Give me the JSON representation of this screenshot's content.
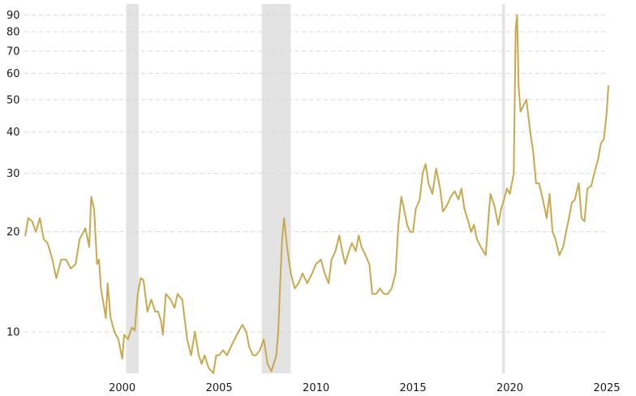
{
  "chart_data": {
    "type": "line",
    "title": "",
    "xlabel": "",
    "ylabel": "",
    "y_scale": "log",
    "ylim": [
      7.5,
      97
    ],
    "xlim": [
      1994.95,
      2025.0
    ],
    "y_ticks": [
      10,
      20,
      30,
      40,
      50,
      60,
      70,
      80,
      90
    ],
    "x_ticks": [
      2000,
      2005,
      2010,
      2015,
      2020,
      2025
    ],
    "grid": "horizontal dashed",
    "legend": "none",
    "colors": {
      "line": "#c9a94f",
      "recession": "#e3e3e3",
      "grid": "#d9d9d9"
    },
    "recession_bands": [
      {
        "start": 2000.2,
        "end": 2000.85
      },
      {
        "start": 2007.2,
        "end": 2008.7
      },
      {
        "start": 2019.6,
        "end": 2019.75
      }
    ],
    "series": [
      {
        "values": [
          [
            1995.0,
            19.5
          ],
          [
            1995.15,
            22
          ],
          [
            1995.35,
            21.5
          ],
          [
            1995.55,
            20
          ],
          [
            1995.75,
            22
          ],
          [
            1995.95,
            19
          ],
          [
            1996.15,
            18.5
          ],
          [
            1996.4,
            16.5
          ],
          [
            1996.6,
            14.5
          ],
          [
            1996.85,
            16.5
          ],
          [
            1997.1,
            16.5
          ],
          [
            1997.35,
            15.5
          ],
          [
            1997.6,
            16
          ],
          [
            1997.8,
            19
          ],
          [
            1998.1,
            20.5
          ],
          [
            1998.3,
            18
          ],
          [
            1998.4,
            25.5
          ],
          [
            1998.55,
            23.5
          ],
          [
            1998.7,
            16
          ],
          [
            1998.8,
            16.5
          ],
          [
            1998.9,
            13.5
          ],
          [
            1999.05,
            12
          ],
          [
            1999.15,
            11
          ],
          [
            1999.25,
            14
          ],
          [
            1999.4,
            11
          ],
          [
            1999.6,
            10
          ],
          [
            1999.8,
            9.5
          ],
          [
            2000.0,
            8.3
          ],
          [
            2000.1,
            9.8
          ],
          [
            2000.3,
            9.5
          ],
          [
            2000.5,
            10.3
          ],
          [
            2000.65,
            10.1
          ],
          [
            2000.8,
            13
          ],
          [
            2000.95,
            14.5
          ],
          [
            2001.1,
            14.3
          ],
          [
            2001.3,
            11.5
          ],
          [
            2001.5,
            12.5
          ],
          [
            2001.7,
            11.5
          ],
          [
            2001.85,
            11.5
          ],
          [
            2002.0,
            10.8
          ],
          [
            2002.1,
            9.8
          ],
          [
            2002.25,
            13
          ],
          [
            2002.5,
            12.5
          ],
          [
            2002.7,
            11.8
          ],
          [
            2002.85,
            13
          ],
          [
            2003.1,
            12.5
          ],
          [
            2003.35,
            9.5
          ],
          [
            2003.55,
            8.5
          ],
          [
            2003.75,
            10
          ],
          [
            2003.95,
            8.5
          ],
          [
            2004.1,
            8
          ],
          [
            2004.25,
            8.5
          ],
          [
            2004.45,
            7.8
          ],
          [
            2004.7,
            7.5
          ],
          [
            2004.85,
            8.5
          ],
          [
            2005.0,
            8.5
          ],
          [
            2005.2,
            8.8
          ],
          [
            2005.4,
            8.5
          ],
          [
            2005.6,
            9
          ],
          [
            2005.8,
            9.5
          ],
          [
            2006.0,
            10
          ],
          [
            2006.2,
            10.5
          ],
          [
            2006.4,
            10
          ],
          [
            2006.55,
            9
          ],
          [
            2006.75,
            8.5
          ],
          [
            2006.9,
            8.5
          ],
          [
            2007.1,
            8.8
          ],
          [
            2007.3,
            9.5
          ],
          [
            2007.5,
            8
          ],
          [
            2007.7,
            7.6
          ],
          [
            2007.95,
            8.5
          ],
          [
            2008.05,
            10
          ],
          [
            2008.15,
            14
          ],
          [
            2008.25,
            19
          ],
          [
            2008.35,
            22
          ],
          [
            2008.5,
            18
          ],
          [
            2008.7,
            15
          ],
          [
            2008.9,
            13.5
          ],
          [
            2009.1,
            14
          ],
          [
            2009.3,
            15
          ],
          [
            2009.55,
            14
          ],
          [
            2009.8,
            15
          ],
          [
            2010.0,
            16
          ],
          [
            2010.25,
            16.5
          ],
          [
            2010.45,
            15
          ],
          [
            2010.65,
            14
          ],
          [
            2010.8,
            16.5
          ],
          [
            2011.0,
            17.5
          ],
          [
            2011.2,
            19.5
          ],
          [
            2011.35,
            17.5
          ],
          [
            2011.5,
            16
          ],
          [
            2011.7,
            17.5
          ],
          [
            2011.85,
            18.5
          ],
          [
            2012.05,
            17.5
          ],
          [
            2012.2,
            19.5
          ],
          [
            2012.35,
            18
          ],
          [
            2012.55,
            17
          ],
          [
            2012.75,
            16
          ],
          [
            2012.9,
            13
          ],
          [
            2013.1,
            13
          ],
          [
            2013.3,
            13.5
          ],
          [
            2013.5,
            13
          ],
          [
            2013.7,
            13
          ],
          [
            2013.9,
            13.5
          ],
          [
            2014.1,
            15
          ],
          [
            2014.25,
            21
          ],
          [
            2014.4,
            25.5
          ],
          [
            2014.5,
            24
          ],
          [
            2014.7,
            21
          ],
          [
            2014.85,
            20
          ],
          [
            2015.0,
            20
          ],
          [
            2015.15,
            23.5
          ],
          [
            2015.35,
            25
          ],
          [
            2015.5,
            30
          ],
          [
            2015.65,
            32
          ],
          [
            2015.8,
            28
          ],
          [
            2016.0,
            26
          ],
          [
            2016.2,
            31
          ],
          [
            2016.4,
            27
          ],
          [
            2016.55,
            23
          ],
          [
            2016.75,
            24
          ],
          [
            2016.95,
            25.5
          ],
          [
            2017.15,
            26.5
          ],
          [
            2017.35,
            25
          ],
          [
            2017.5,
            27
          ],
          [
            2017.65,
            23.5
          ],
          [
            2017.85,
            21.5
          ],
          [
            2018.0,
            20
          ],
          [
            2018.15,
            21
          ],
          [
            2018.3,
            19
          ],
          [
            2018.5,
            18
          ],
          [
            2018.75,
            17
          ],
          [
            2018.9,
            22
          ],
          [
            2019.0,
            26
          ],
          [
            2019.2,
            24
          ],
          [
            2019.4,
            21
          ],
          [
            2019.55,
            23.5
          ],
          [
            2019.7,
            25
          ],
          [
            2019.85,
            27
          ],
          [
            2020.0,
            26
          ],
          [
            2020.1,
            28
          ],
          [
            2020.2,
            30
          ],
          [
            2020.25,
            50
          ],
          [
            2020.3,
            82
          ],
          [
            2020.37,
            90
          ],
          [
            2020.45,
            55
          ],
          [
            2020.55,
            46
          ],
          [
            2020.7,
            48
          ],
          [
            2020.85,
            50
          ],
          [
            2020.95,
            45
          ],
          [
            2021.05,
            40
          ],
          [
            2021.2,
            35
          ],
          [
            2021.35,
            28
          ],
          [
            2021.5,
            28
          ],
          [
            2021.7,
            25
          ],
          [
            2021.9,
            22
          ],
          [
            2022.05,
            26
          ],
          [
            2022.2,
            20
          ],
          [
            2022.35,
            19
          ],
          [
            2022.55,
            17
          ],
          [
            2022.75,
            18
          ],
          [
            2022.9,
            20
          ],
          [
            2023.05,
            22
          ],
          [
            2023.2,
            24.5
          ],
          [
            2023.35,
            25
          ],
          [
            2023.55,
            28
          ],
          [
            2023.7,
            22
          ],
          [
            2023.85,
            21.5
          ],
          [
            2024.0,
            27
          ],
          [
            2024.2,
            27.5
          ],
          [
            2024.35,
            30
          ],
          [
            2024.55,
            33
          ],
          [
            2024.7,
            37
          ],
          [
            2024.85,
            38
          ],
          [
            2025.0,
            46
          ],
          [
            2025.08,
            55
          ]
        ]
      }
    ]
  }
}
